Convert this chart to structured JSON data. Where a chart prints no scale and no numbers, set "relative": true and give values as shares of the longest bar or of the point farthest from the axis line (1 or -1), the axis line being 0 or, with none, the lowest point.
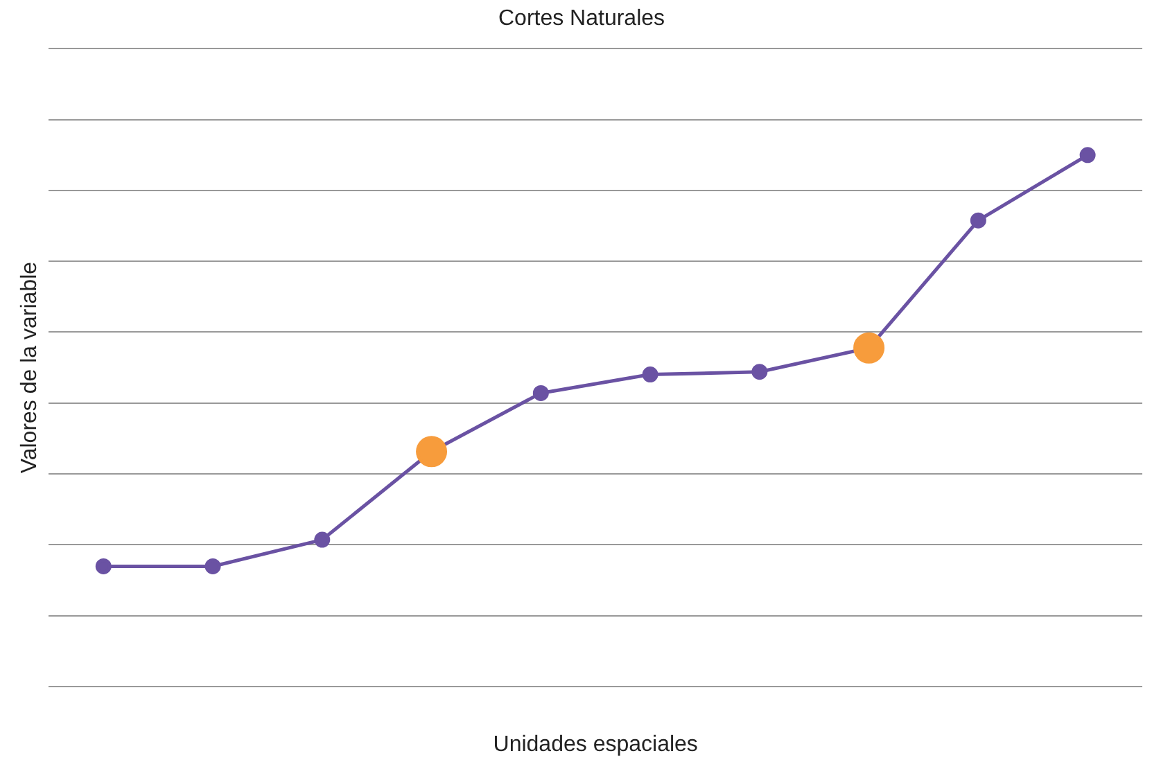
{
  "chart_data": {
    "type": "line",
    "title": "Cortes Naturales",
    "xlabel": "Unidades espaciales",
    "ylabel": "Valores de la variable",
    "relative": true,
    "grid": "y",
    "legend": false,
    "marker": "circle",
    "line_style": "solid",
    "categories": [
      null,
      null,
      null,
      null,
      null,
      null,
      null,
      null,
      null,
      null
    ],
    "series": [
      {
        "color": "#6a52a3",
        "colors": [
          "#6a52a3",
          "#6a52a3",
          "#6a52a3",
          "#f79c3c",
          "#6a52a3",
          "#6a52a3",
          "#6a52a3",
          "#f79c3c",
          "#6a52a3",
          "#6a52a3"
        ],
        "values": [
          0.226,
          0.226,
          0.276,
          0.442,
          0.552,
          0.587,
          0.592,
          0.637,
          0.877,
          1
        ]
      }
    ]
  }
}
